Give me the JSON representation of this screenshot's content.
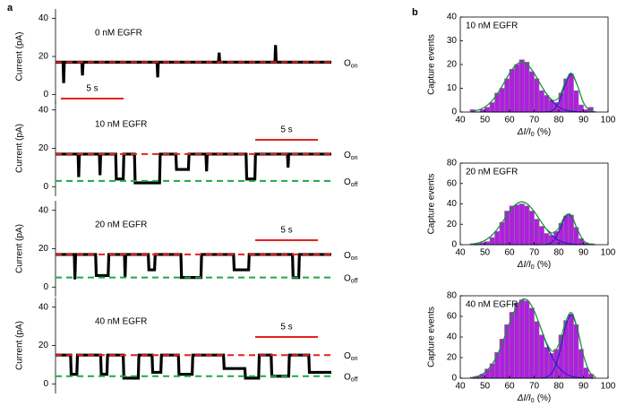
{
  "panel_labels": [
    "a",
    "b"
  ],
  "chart_data": [
    {
      "type": "line",
      "title": "0 nM EGFR",
      "ylabel": "Current (pA)",
      "xlim": [
        0,
        22
      ],
      "ylim": [
        -5,
        45
      ],
      "yticks": [
        0,
        20,
        40
      ],
      "x": [
        0,
        0.6,
        0.65,
        0.7,
        2.1,
        2.15,
        2.2,
        8.1,
        8.15,
        8.2,
        13,
        13.05,
        13.1,
        17.5,
        17.55,
        17.6,
        22
      ],
      "series": [
        {
          "color": "#000000",
          "values": [
            17,
            17,
            6,
            17,
            17,
            10,
            17,
            17,
            9,
            17,
            17,
            22,
            17,
            17,
            26,
            17,
            17
          ]
        }
      ],
      "reference_lines": [
        {
          "value": 17,
          "color": "#e8201c",
          "label": "O",
          "label_sub": "on"
        }
      ],
      "scale_bar": {
        "length": 5,
        "label": "5 s",
        "color": "#e8201c"
      }
    },
    {
      "type": "line",
      "title": "10 nM EGFR",
      "ylabel": "Current (pA)",
      "xlim": [
        0,
        22
      ],
      "ylim": [
        -5,
        45
      ],
      "yticks": [
        0,
        20,
        40
      ],
      "x": [
        0,
        1.8,
        1.85,
        1.9,
        3.5,
        3.55,
        3.6,
        4.8,
        4.85,
        5.4,
        5.45,
        6.3,
        6.35,
        8.3,
        8.35,
        9.6,
        9.65,
        10.6,
        10.65,
        12,
        12.05,
        12.1,
        15.2,
        15.25,
        15.9,
        15.95,
        18.5,
        18.55,
        18.6,
        22
      ],
      "series": [
        {
          "color": "#000000",
          "values": [
            17,
            17,
            5,
            17,
            17,
            6,
            17,
            17,
            4,
            4,
            17,
            17,
            2,
            2,
            17,
            17,
            9,
            9,
            17,
            17,
            8,
            17,
            17,
            4,
            4,
            17,
            17,
            10,
            17,
            17
          ]
        }
      ],
      "reference_lines": [
        {
          "value": 17,
          "color": "#e8201c",
          "label": "O",
          "label_sub": "on"
        },
        {
          "value": 3,
          "color": "#1ca84a",
          "label": "O",
          "label_sub": "off"
        }
      ],
      "scale_bar": {
        "length": 5,
        "label": "5 s",
        "color": "#e8201c"
      }
    },
    {
      "type": "line",
      "title": "20 nM EGFR",
      "ylabel": "Current (pA)",
      "xlim": [
        0,
        22
      ],
      "ylim": [
        -5,
        45
      ],
      "yticks": [
        0,
        20,
        40
      ],
      "x": [
        0,
        1.5,
        1.55,
        1.6,
        3.2,
        3.25,
        4.2,
        4.25,
        5.5,
        5.55,
        5.6,
        7.4,
        7.45,
        7.9,
        7.95,
        10,
        10.05,
        11.6,
        11.65,
        14.2,
        14.25,
        15.4,
        15.45,
        18.9,
        18.95,
        19.4,
        19.45,
        22
      ],
      "series": [
        {
          "color": "#000000",
          "values": [
            17,
            17,
            4,
            17,
            17,
            6,
            6,
            17,
            17,
            5,
            17,
            17,
            9,
            9,
            17,
            17,
            5,
            5,
            17,
            17,
            9,
            9,
            17,
            17,
            5,
            5,
            17,
            17
          ]
        }
      ],
      "reference_lines": [
        {
          "value": 17,
          "color": "#e8201c",
          "label": "O",
          "label_sub": "on"
        },
        {
          "value": 5,
          "color": "#1ca84a",
          "label": "O",
          "label_sub": "off"
        }
      ],
      "scale_bar": {
        "length": 5,
        "label": "5 s",
        "color": "#e8201c"
      }
    },
    {
      "type": "line",
      "title": "40 nM EGFR",
      "ylabel": "Current (pA)",
      "xlim": [
        0,
        22
      ],
      "ylim": [
        -5,
        45
      ],
      "yticks": [
        0,
        20,
        40
      ],
      "x": [
        0,
        1.2,
        1.25,
        1.7,
        1.75,
        3.6,
        3.65,
        4.1,
        4.15,
        5.4,
        5.45,
        6.6,
        6.65,
        7.7,
        7.75,
        8.4,
        8.45,
        9.8,
        9.85,
        10.9,
        10.95,
        13.4,
        13.45,
        15.1,
        15.15,
        16.2,
        16.25,
        17.2,
        17.25,
        18.6,
        18.65,
        20.2,
        20.25,
        22
      ],
      "series": [
        {
          "color": "#000000",
          "values": [
            15,
            15,
            5,
            5,
            15,
            15,
            5,
            5,
            15,
            15,
            3,
            3,
            15,
            15,
            6,
            6,
            15,
            15,
            5,
            5,
            15,
            15,
            8,
            8,
            3,
            3,
            15,
            15,
            4,
            4,
            15,
            15,
            6,
            6
          ]
        }
      ],
      "reference_lines": [
        {
          "value": 15,
          "color": "#e8201c",
          "label": "O",
          "label_sub": "on"
        },
        {
          "value": 4,
          "color": "#1ca84a",
          "label": "O",
          "label_sub": "off"
        }
      ],
      "scale_bar": {
        "length": 5,
        "label": "5 s",
        "color": "#e8201c"
      }
    },
    {
      "type": "histogram",
      "title": "10 nM EGFR",
      "ylabel": "Capture events",
      "xlabel": "ΔI/I",
      "xlabel_sub": "0",
      "xlabel_unit": "(%)",
      "xlim": [
        40,
        100
      ],
      "xticks": [
        40,
        50,
        60,
        70,
        80,
        90,
        100
      ],
      "ylim": [
        0,
        40
      ],
      "yticks": [
        0,
        10,
        20,
        30,
        40
      ],
      "color": "#b01ee0",
      "bins": [
        44,
        46,
        48,
        50,
        52,
        54,
        56,
        58,
        60,
        62,
        64,
        66,
        68,
        70,
        72,
        74,
        76,
        78,
        80,
        82,
        84,
        86,
        88,
        90,
        92,
        94,
        96
      ],
      "values": [
        1,
        0,
        1,
        2,
        4,
        8,
        10,
        14,
        18,
        20,
        22,
        21,
        17,
        14,
        9,
        7,
        5,
        4,
        8,
        14,
        16,
        9,
        3,
        1,
        2,
        0
      ],
      "fit_x": [
        45,
        47.5,
        50,
        52.5,
        55,
        57.5,
        60,
        62.5,
        65,
        67.5,
        70,
        72.5,
        75,
        77.5,
        80,
        82.5,
        85,
        87.5,
        90,
        92.5,
        95
      ],
      "fits": [
        {
          "color": "#2020c0",
          "values": [
            0.4,
            0.9,
            2.1,
            4.3,
            7.6,
            11.8,
            16.3,
            19.7,
            21,
            19.7,
            16.3,
            11.8,
            7.6,
            4.3,
            2.1,
            0.9,
            0.4,
            0.1,
            0,
            0,
            0
          ]
        },
        {
          "color": "#2020c0",
          "values": [
            0,
            0,
            0,
            0,
            0,
            0,
            0,
            0,
            0,
            0,
            0,
            0,
            0.1,
            0.7,
            4,
            11.3,
            16,
            11.3,
            4,
            0.7,
            0.1
          ]
        },
        {
          "color": "#1a9c2a",
          "values": [
            0.4,
            0.9,
            2.1,
            4.3,
            7.6,
            11.8,
            16.3,
            19.7,
            21,
            19.7,
            16.3,
            11.8,
            7.7,
            5.0,
            6.1,
            12.2,
            16.4,
            11.4,
            4,
            0.7,
            0.1
          ]
        }
      ]
    },
    {
      "type": "histogram",
      "title": "20 nM EGFR",
      "ylabel": "Capture events",
      "xlabel": "ΔI/I",
      "xlabel_sub": "0",
      "xlabel_unit": "(%)",
      "xlim": [
        40,
        100
      ],
      "xticks": [
        40,
        50,
        60,
        70,
        80,
        90,
        100
      ],
      "ylim": [
        0,
        80
      ],
      "yticks": [
        0,
        20,
        40,
        60,
        80
      ],
      "color": "#b01ee0",
      "bins": [
        44,
        46,
        48,
        50,
        52,
        54,
        56,
        58,
        60,
        62,
        64,
        66,
        68,
        70,
        72,
        74,
        76,
        78,
        80,
        82,
        84,
        86,
        88,
        90,
        92,
        94,
        96
      ],
      "values": [
        1,
        1,
        2,
        3,
        7,
        13,
        22,
        33,
        38,
        39,
        40,
        38,
        33,
        25,
        18,
        11,
        9,
        13,
        21,
        28,
        29,
        17,
        6,
        2,
        1,
        0
      ],
      "fit_x": [
        45,
        47.5,
        50,
        52.5,
        55,
        57.5,
        60,
        62.5,
        65,
        67.5,
        70,
        72.5,
        75,
        77.5,
        80,
        82.5,
        85,
        87.5,
        90,
        92.5,
        95
      ],
      "fits": [
        {
          "color": "#2020c0",
          "values": [
            0.7,
            1.8,
            4.2,
            8.5,
            15.1,
            23.6,
            32.6,
            39.4,
            42,
            39.4,
            32.6,
            23.6,
            15.1,
            8.5,
            4.2,
            1.8,
            0.7,
            0.3,
            0.1,
            0,
            0
          ]
        },
        {
          "color": "#2020c0",
          "values": [
            0,
            0,
            0,
            0,
            0,
            0,
            0,
            0,
            0,
            0,
            0,
            0,
            0.3,
            2.9,
            12.3,
            26.4,
            28.4,
            15.2,
            4.1,
            0.5,
            0
          ]
        },
        {
          "color": "#1a9c2a",
          "values": [
            0.7,
            1.8,
            4.2,
            8.5,
            15.1,
            23.6,
            32.6,
            39.4,
            42,
            39.4,
            32.6,
            23.6,
            15.4,
            11.4,
            16.5,
            28.2,
            29.1,
            15.5,
            4.2,
            0.5,
            0
          ]
        }
      ]
    },
    {
      "type": "histogram",
      "title": "40 nM EGFR",
      "ylabel": "Capture events",
      "xlabel": "ΔI/I",
      "xlabel_sub": "0",
      "xlabel_unit": "(%)",
      "xlim": [
        40,
        100
      ],
      "xticks": [
        40,
        50,
        60,
        70,
        80,
        90,
        100
      ],
      "ylim": [
        0,
        80
      ],
      "yticks": [
        0,
        20,
        40,
        60,
        80
      ],
      "color": "#b01ee0",
      "bins": [
        44,
        46,
        48,
        50,
        52,
        54,
        56,
        58,
        60,
        62,
        64,
        66,
        68,
        70,
        72,
        74,
        76,
        78,
        80,
        82,
        84,
        86,
        88,
        90,
        92,
        94,
        96
      ],
      "values": [
        1,
        2,
        4,
        9,
        14,
        25,
        38,
        52,
        64,
        73,
        76,
        75,
        68,
        55,
        42,
        30,
        24,
        28,
        42,
        56,
        62,
        52,
        28,
        10,
        4,
        0
      ],
      "fit_x": [
        45,
        47.5,
        50,
        52.5,
        55,
        57.5,
        60,
        62.5,
        65,
        67.5,
        70,
        72.5,
        75,
        77.5,
        80,
        82.5,
        85,
        87.5,
        90,
        92.5,
        95
      ],
      "fits": [
        {
          "color": "#2020c0",
          "values": [
            0.8,
            2.3,
            5.6,
            12,
            22.4,
            36.8,
            53.4,
            67.9,
            76.2,
            75.2,
            65.4,
            50,
            33.6,
            19.9,
            10.4,
            4.8,
            1.9,
            0.7,
            0.2,
            0,
            0
          ]
        },
        {
          "color": "#2020c0",
          "values": [
            0,
            0,
            0,
            0,
            0,
            0,
            0,
            0,
            0,
            0,
            0,
            0.1,
            1.1,
            6.2,
            22.3,
            48,
            62,
            48,
            22.3,
            6.2,
            1.1
          ]
        },
        {
          "color": "#1a9c2a",
          "values": [
            0.8,
            2.3,
            5.6,
            12,
            22.4,
            36.8,
            53.4,
            67.9,
            76.2,
            75.2,
            65.4,
            50.1,
            34.7,
            26.1,
            32.7,
            52.8,
            63.9,
            48.7,
            22.5,
            6.2,
            1.1
          ]
        }
      ]
    }
  ]
}
